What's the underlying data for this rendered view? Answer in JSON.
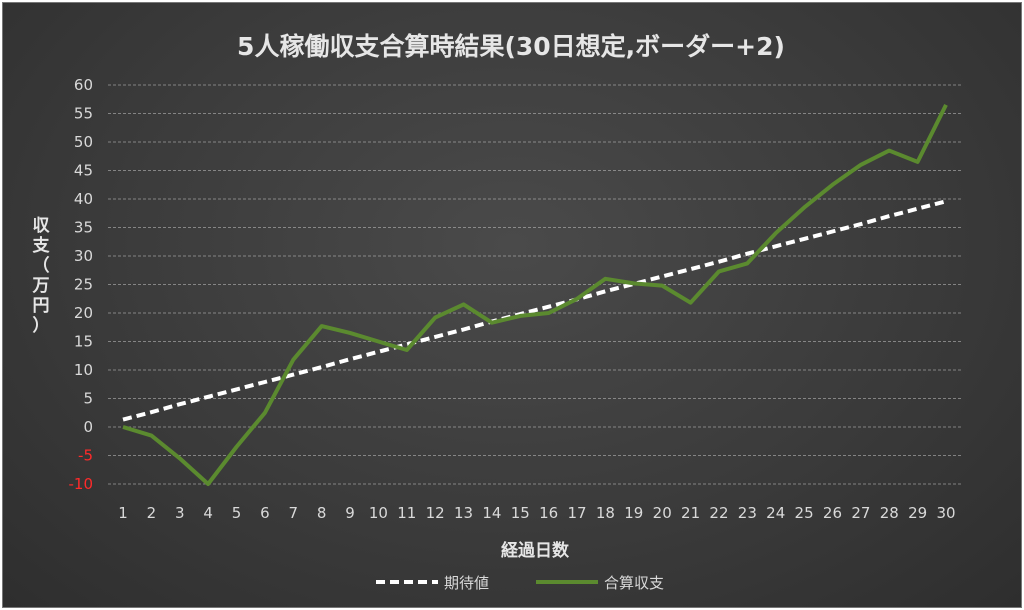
{
  "chart_data": {
    "type": "line",
    "title": "5人稼働収支合算時結果(30日想定,ボーダー+2)",
    "xlabel": "経過日数",
    "ylabel_chars": [
      "収",
      "支",
      "（",
      "万",
      "円",
      "）"
    ],
    "ylim": [
      -10,
      60
    ],
    "yticks": [
      -10,
      -5,
      0,
      5,
      10,
      15,
      20,
      25,
      30,
      35,
      40,
      45,
      50,
      55,
      60
    ],
    "negative_tick_color": "#ff2a2a",
    "x": [
      1,
      2,
      3,
      4,
      5,
      6,
      7,
      8,
      9,
      10,
      11,
      12,
      13,
      14,
      15,
      16,
      17,
      18,
      19,
      20,
      21,
      22,
      23,
      24,
      25,
      26,
      27,
      28,
      29,
      30
    ],
    "grid": true,
    "legend_position": "bottom",
    "series": [
      {
        "name": "期待値",
        "color": "#ffffff",
        "style": "dashed",
        "values": [
          1.3,
          2.6,
          4.0,
          5.3,
          6.6,
          7.9,
          9.2,
          10.5,
          11.9,
          13.2,
          14.5,
          15.8,
          17.1,
          18.5,
          19.8,
          21.1,
          22.4,
          23.8,
          25.1,
          26.4,
          27.7,
          29.0,
          30.4,
          31.7,
          33.0,
          34.3,
          35.6,
          37.0,
          38.3,
          39.6
        ]
      },
      {
        "name": "合算収支",
        "color": "#5b8a2f",
        "style": "solid",
        "values": [
          0,
          -1.5,
          -5.5,
          -10,
          -3.5,
          2.5,
          11.8,
          17.7,
          16.5,
          15,
          13.5,
          19.2,
          21.5,
          18.3,
          19.5,
          20,
          22.5,
          26,
          25.2,
          24.8,
          21.8,
          27.3,
          28.7,
          34,
          38.5,
          42.5,
          46,
          48.5,
          46.5,
          56.5
        ]
      }
    ]
  }
}
